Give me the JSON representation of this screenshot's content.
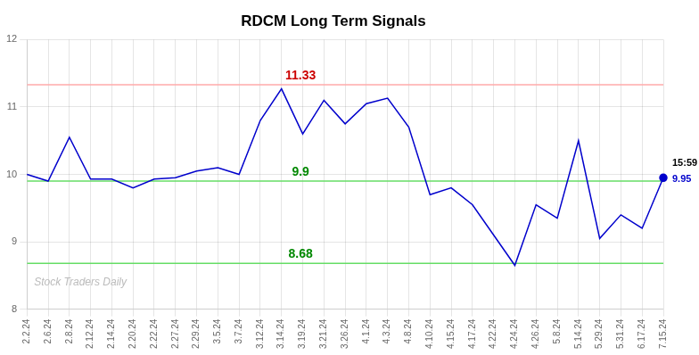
{
  "chart_data": {
    "type": "line",
    "title": "RDCM Long Term Signals",
    "categories": [
      "2.2.24",
      "2.6.24",
      "2.8.24",
      "2.12.24",
      "2.14.24",
      "2.20.24",
      "2.22.24",
      "2.27.24",
      "2.29.24",
      "3.5.24",
      "3.7.24",
      "3.12.24",
      "3.14.24",
      "3.19.24",
      "3.21.24",
      "3.26.24",
      "4.1.24",
      "4.3.24",
      "4.8.24",
      "4.10.24",
      "4.15.24",
      "4.17.24",
      "4.22.24",
      "4.24.24",
      "4.26.24",
      "5.8.24",
      "5.14.24",
      "5.29.24",
      "5.31.24",
      "6.17.24",
      "7.15.24"
    ],
    "values": [
      10.0,
      9.9,
      10.55,
      9.93,
      9.93,
      9.8,
      9.93,
      9.95,
      10.05,
      10.1,
      10.0,
      10.8,
      11.27,
      10.6,
      11.1,
      10.75,
      11.05,
      11.13,
      10.7,
      9.7,
      9.8,
      9.55,
      9.1,
      8.65,
      9.55,
      9.35,
      10.5,
      9.05,
      9.4,
      9.2,
      9.95
    ],
    "color": "#0000cc",
    "ylim": [
      8,
      12
    ],
    "yticks": [
      8,
      9,
      10,
      11,
      12
    ],
    "grid": true,
    "reference_lines": [
      {
        "value": 11.33,
        "label": "11.33",
        "color": "#ffaaaa",
        "label_color": "#cc0000"
      },
      {
        "value": 9.9,
        "label": "9.9",
        "color": "#66dd66",
        "label_color": "#008800"
      },
      {
        "value": 8.68,
        "label": "8.68",
        "color": "#66dd66",
        "label_color": "#008800"
      }
    ],
    "last_point": {
      "label": "15:59",
      "value": 9.95,
      "value_label": "9.95"
    },
    "watermark": "Stock Traders Daily"
  }
}
